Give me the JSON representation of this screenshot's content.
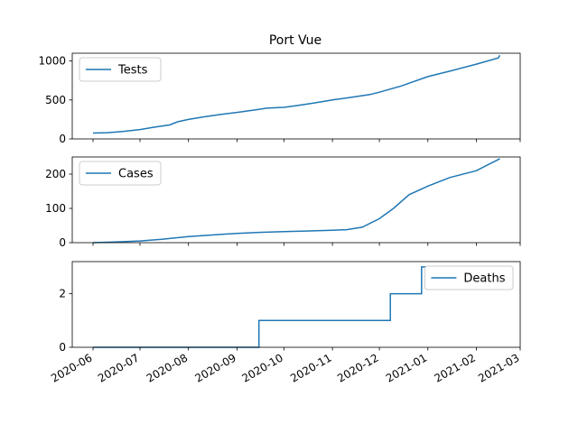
{
  "chart_data": {
    "type": "line",
    "title": "Port Vue",
    "series_color": "#1f77b4",
    "x_range": [
      "2020-06-01",
      "2021-03-01"
    ],
    "x_tick_labels": [
      "2020-06",
      "2020-07",
      "2020-08",
      "2020-09",
      "2020-10",
      "2020-11",
      "2020-12",
      "2021-01",
      "2021-02",
      "2021-03"
    ],
    "grid": false,
    "panels": [
      {
        "series_name": "Tests",
        "legend_position": "upper-left",
        "ylim": [
          0,
          1100
        ],
        "y_ticks": [
          0,
          500,
          1000
        ],
        "x": [
          "2020-06-01",
          "2020-06-10",
          "2020-06-20",
          "2020-07-01",
          "2020-07-10",
          "2020-07-20",
          "2020-07-25",
          "2020-08-01",
          "2020-08-10",
          "2020-08-20",
          "2020-09-01",
          "2020-09-15",
          "2020-09-20",
          "2020-10-01",
          "2020-10-10",
          "2020-10-20",
          "2020-11-01",
          "2020-11-15",
          "2020-11-25",
          "2020-12-01",
          "2020-12-15",
          "2021-01-01",
          "2021-01-15",
          "2021-02-01",
          "2021-02-15",
          "2021-02-16"
        ],
        "y": [
          75,
          80,
          95,
          120,
          150,
          180,
          220,
          250,
          280,
          310,
          340,
          380,
          395,
          405,
          430,
          460,
          500,
          540,
          570,
          600,
          680,
          800,
          870,
          960,
          1040,
          1075
        ]
      },
      {
        "series_name": "Cases",
        "legend_position": "upper-left",
        "ylim": [
          0,
          250
        ],
        "y_ticks": [
          0,
          100,
          200
        ],
        "x": [
          "2020-06-01",
          "2020-06-15",
          "2020-07-01",
          "2020-07-15",
          "2020-08-01",
          "2020-08-15",
          "2020-09-01",
          "2020-09-15",
          "2020-10-01",
          "2020-10-15",
          "2020-11-01",
          "2020-11-10",
          "2020-11-20",
          "2020-12-01",
          "2020-12-10",
          "2020-12-20",
          "2021-01-01",
          "2021-01-15",
          "2021-02-01",
          "2021-02-16"
        ],
        "y": [
          0,
          2,
          5,
          10,
          18,
          22,
          27,
          30,
          32,
          34,
          36,
          38,
          45,
          70,
          100,
          140,
          165,
          190,
          210,
          245
        ]
      },
      {
        "series_name": "Deaths",
        "legend_position": "upper-right",
        "ylim": [
          0,
          3.2
        ],
        "y_ticks": [
          0,
          2
        ],
        "step": true,
        "x": [
          "2020-06-01",
          "2020-09-15",
          "2020-12-08",
          "2020-12-28",
          "2021-02-16"
        ],
        "y": [
          0,
          1,
          2,
          3,
          3
        ]
      }
    ]
  }
}
